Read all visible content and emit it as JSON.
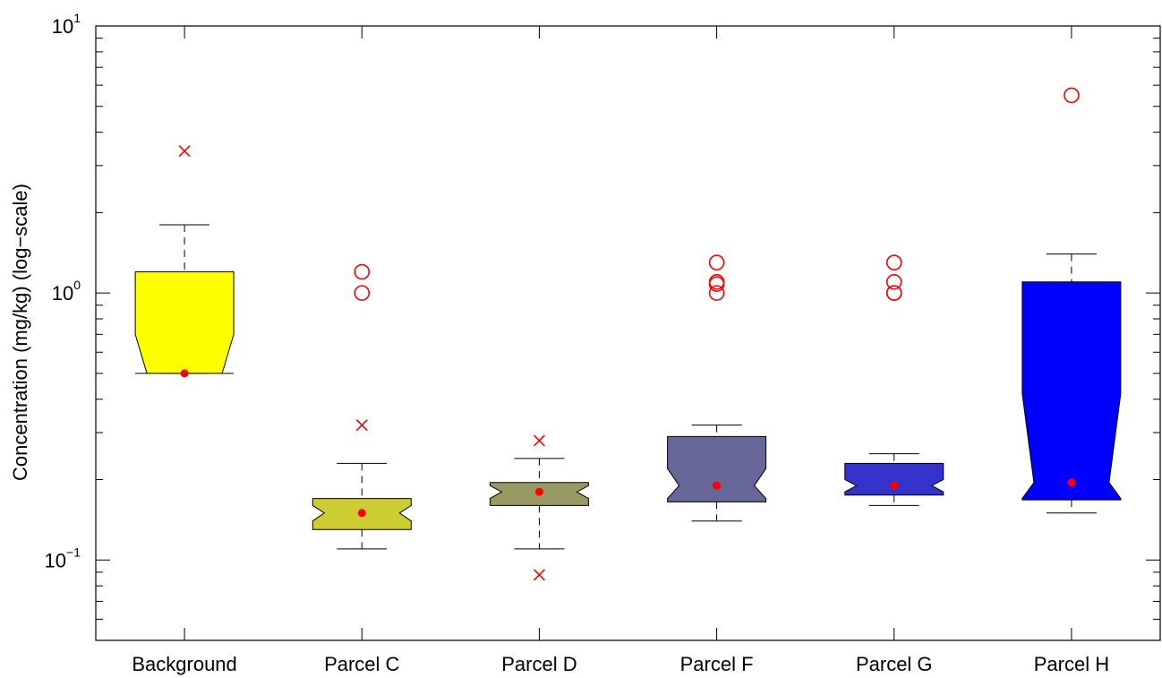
{
  "chart_data": {
    "type": "box",
    "title": "",
    "xlabel": "",
    "ylabel": "Concentration (mg/kg) (log−scale)",
    "yscale": "log",
    "ylim": [
      0.05,
      10
    ],
    "yticks": [
      {
        "base": "10",
        "exp": "1",
        "value": 10
      },
      {
        "base": "10",
        "exp": "0",
        "value": 1
      },
      {
        "base": "10",
        "exp": "−1",
        "value": 0.1
      }
    ],
    "grid": false,
    "notched": true,
    "categories": [
      "Background",
      "Parcel C",
      "Parcel D",
      "Parcel F",
      "Parcel G",
      "Parcel H"
    ],
    "boxes": [
      {
        "category": "Background",
        "color": "#ffff00",
        "q1": 0.5,
        "median": 0.5,
        "q3": 1.2,
        "notch_low": 0.5,
        "notch_high": 0.7,
        "whisker_low": 0.5,
        "whisker_high": 1.8,
        "circles": [],
        "crosses": [
          3.4
        ]
      },
      {
        "category": "Parcel C",
        "color": "#cccc33",
        "q1": 0.13,
        "median": 0.15,
        "q3": 0.17,
        "notch_low": 0.14,
        "notch_high": 0.16,
        "whisker_low": 0.11,
        "whisker_high": 0.23,
        "circles": [
          1.2,
          1.0
        ],
        "crosses": [
          0.32
        ]
      },
      {
        "category": "Parcel D",
        "color": "#999966",
        "q1": 0.16,
        "median": 0.18,
        "q3": 0.195,
        "notch_low": 0.17,
        "notch_high": 0.19,
        "whisker_low": 0.11,
        "whisker_high": 0.24,
        "circles": [],
        "crosses": [
          0.28,
          0.088
        ]
      },
      {
        "category": "Parcel F",
        "color": "#666699",
        "q1": 0.165,
        "median": 0.19,
        "q3": 0.29,
        "notch_low": 0.17,
        "notch_high": 0.22,
        "whisker_low": 0.14,
        "whisker_high": 0.32,
        "circles": [
          1.3,
          1.1,
          1.08,
          1.0
        ],
        "crosses": []
      },
      {
        "category": "Parcel G",
        "color": "#3333cc",
        "q1": 0.175,
        "median": 0.19,
        "q3": 0.23,
        "notch_low": 0.18,
        "notch_high": 0.2,
        "whisker_low": 0.16,
        "whisker_high": 0.25,
        "circles": [
          1.3,
          1.1,
          1.0,
          1.0
        ],
        "crosses": []
      },
      {
        "category": "Parcel H",
        "color": "#0000ff",
        "q1": 0.168,
        "median": 0.195,
        "q3": 1.1,
        "notch_low": 0.17,
        "notch_high": 0.42,
        "whisker_low": 0.15,
        "whisker_high": 1.4,
        "circles": [
          5.5
        ],
        "crosses": []
      }
    ]
  }
}
